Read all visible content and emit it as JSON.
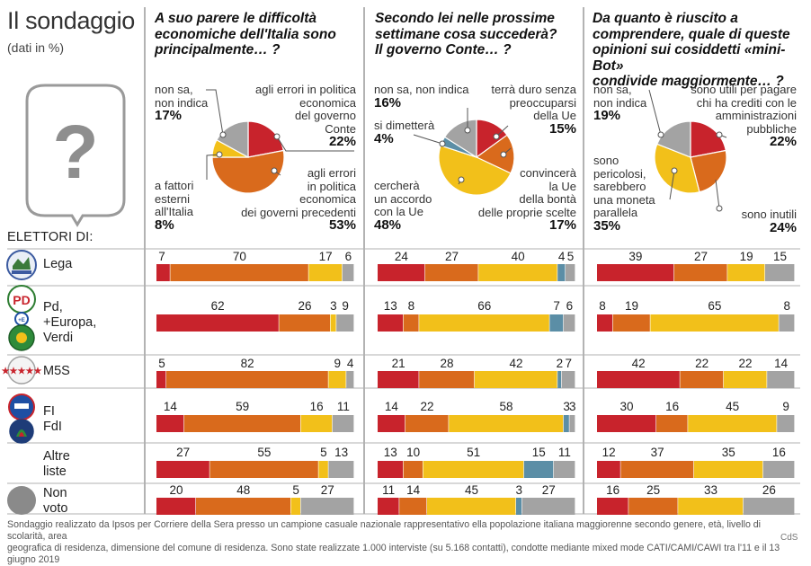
{
  "header": {
    "title": "Il sondaggio",
    "subtitle": "(dati in %)"
  },
  "electors_title": "ELETTORI DI:",
  "parties": [
    {
      "lines": [
        "Lega"
      ]
    },
    {
      "lines": [
        "Pd,",
        "+Europa,",
        "Verdi"
      ]
    },
    {
      "lines": [
        "M5S"
      ]
    },
    {
      "lines": [
        "FI",
        "FdI"
      ]
    },
    {
      "lines": [
        "Altre",
        "liste"
      ]
    },
    {
      "lines": [
        "Non",
        "voto"
      ]
    }
  ],
  "footnote": {
    "line1": "Sondaggio realizzato da Ipsos per Corriere della Sera presso un campione casuale nazionale rappresentativo ella popolazione italiana maggiorenne secondo genere, età, livello di scolarità, area",
    "line2": "geografica di residenza, dimensione del comune di residenza. Sono state realizzate 1.000 interviste (su 5.168 contatti), condotte mediante mixed mode CATI/CAMI/CAWI tra l'11 e il 13 giugno 2019"
  },
  "credit": "CdS",
  "colors": {
    "red": "#c8232c",
    "orange": "#d96a1c",
    "yellow": "#f2c01a",
    "gray": "#a3a3a3",
    "steel": "#5b8ea6",
    "rule": "#9a9a9a",
    "dark": "#333333"
  },
  "questions": {
    "q1": {
      "title": [
        "A suo parere le difficoltà",
        "economiche dell'Italia sono",
        "principalmente… ?"
      ],
      "labels": {
        "non_sa": [
          "non sa,",
          "non indica"
        ],
        "non_sa_val": "17%",
        "gov_conte": [
          "agli errori in politica",
          "economica",
          "del governo",
          "Conte"
        ],
        "gov_conte_val": "22%",
        "esterni": [
          "a fattori",
          "esterni",
          "all'Italia"
        ],
        "esterni_val": "8%",
        "prec": [
          "agli errori",
          "in politica",
          "economica",
          "dei governi precedenti"
        ],
        "prec_val": "53%"
      }
    },
    "q2": {
      "title": [
        "Secondo lei nelle prossime",
        "settimane cosa succederà?",
        "Il governo Conte… ?"
      ],
      "labels": {
        "non_sa": [
          "non sa, non indica"
        ],
        "non_sa_val": "16%",
        "duro": [
          "terrà duro senza",
          "preoccuparsi",
          "della Ue"
        ],
        "duro_val": "15%",
        "dimettera": [
          "si dimetterà"
        ],
        "dimettera_val": "4%",
        "convincera": [
          "convincerà",
          "la Ue",
          "della bontà",
          "delle proprie scelte"
        ],
        "convincera_val": "17%",
        "accordo": [
          "cercherà",
          "un accordo",
          "con la Ue"
        ],
        "accordo_val": "48%"
      }
    },
    "q3": {
      "title": [
        "Da quanto è riuscito a",
        "comprendere, quale di queste",
        "opinioni sui cosiddetti «mini-Bot»",
        "condivide maggiormente… ?"
      ],
      "labels": {
        "non_sa": [
          "non sa,",
          "non indica"
        ],
        "non_sa_val": "19%",
        "utili": [
          "sono utili per pagare",
          "chi ha crediti con le",
          "amministrazioni",
          "pubbliche"
        ],
        "utili_val": "22%",
        "pericolosi": [
          "sono",
          "pericolosi,",
          "sarebbero",
          "una moneta",
          "parallela"
        ],
        "pericolosi_val": "35%",
        "inutili": [
          "sono inutili"
        ],
        "inutili_val": "24%"
      }
    }
  },
  "chart_data": [
    {
      "type": "pie",
      "title": "A suo parere le difficoltà economiche dell'Italia sono principalmente… ?",
      "slices": [
        {
          "label": "agli errori in politica economica del governo Conte",
          "value": 22,
          "color": "#c8232c"
        },
        {
          "label": "agli errori in politica economica dei governi precedenti",
          "value": 53,
          "color": "#d96a1c"
        },
        {
          "label": "a fattori esterni all'Italia",
          "value": 8,
          "color": "#f2c01a"
        },
        {
          "label": "non sa, non indica",
          "value": 17,
          "color": "#a3a3a3"
        }
      ],
      "by_electorate": {
        "type": "bar",
        "stacked": true,
        "categories": [
          "Lega",
          "Pd, +Europa, Verdi",
          "M5S",
          "FI FdI",
          "Altre liste",
          "Non voto"
        ],
        "series": [
          {
            "color": "#c8232c",
            "values": [
              7,
              62,
              5,
              14,
              27,
              20
            ]
          },
          {
            "color": "#d96a1c",
            "values": [
              70,
              26,
              82,
              59,
              55,
              48
            ]
          },
          {
            "color": "#f2c01a",
            "values": [
              17,
              3,
              9,
              16,
              5,
              5
            ]
          },
          {
            "color": "#a3a3a3",
            "values": [
              6,
              9,
              4,
              11,
              13,
              27
            ]
          }
        ]
      }
    },
    {
      "type": "pie",
      "title": "Secondo lei nelle prossime settimane cosa succederà? Il governo Conte… ?",
      "slices": [
        {
          "label": "terrà duro senza preoccuparsi della Ue",
          "value": 15,
          "color": "#c8232c"
        },
        {
          "label": "convincerà la Ue della bontà delle proprie scelte",
          "value": 17,
          "color": "#d96a1c"
        },
        {
          "label": "cercherà un accordo con la Ue",
          "value": 48,
          "color": "#f2c01a"
        },
        {
          "label": "si dimetterà",
          "value": 4,
          "color": "#5b8ea6"
        },
        {
          "label": "non sa, non indica",
          "value": 16,
          "color": "#a3a3a3"
        }
      ],
      "by_electorate": {
        "type": "bar",
        "stacked": true,
        "categories": [
          "Lega",
          "Pd, +Europa, Verdi",
          "M5S",
          "FI FdI",
          "Altre liste",
          "Non voto"
        ],
        "series": [
          {
            "color": "#c8232c",
            "values": [
              24,
              13,
              21,
              14,
              13,
              11
            ]
          },
          {
            "color": "#d96a1c",
            "values": [
              27,
              8,
              28,
              22,
              10,
              14
            ]
          },
          {
            "color": "#f2c01a",
            "values": [
              40,
              66,
              42,
              58,
              51,
              45
            ]
          },
          {
            "color": "#5b8ea6",
            "values": [
              4,
              7,
              2,
              3,
              15,
              3
            ]
          },
          {
            "color": "#a3a3a3",
            "values": [
              5,
              6,
              7,
              3,
              11,
              27
            ]
          }
        ]
      }
    },
    {
      "type": "pie",
      "title": "Da quanto è riuscito a comprendere, quale di queste opinioni sui cosiddetti «mini-Bot» condivide maggiormente… ?",
      "slices": [
        {
          "label": "sono utili per pagare chi ha crediti con le amministrazioni pubbliche",
          "value": 22,
          "color": "#c8232c"
        },
        {
          "label": "sono inutili",
          "value": 24,
          "color": "#d96a1c"
        },
        {
          "label": "sono pericolosi, sarebbero una moneta parallela",
          "value": 35,
          "color": "#f2c01a"
        },
        {
          "label": "non sa, non indica",
          "value": 19,
          "color": "#a3a3a3"
        }
      ],
      "by_electorate": {
        "type": "bar",
        "stacked": true,
        "categories": [
          "Lega",
          "Pd, +Europa, Verdi",
          "M5S",
          "FI FdI",
          "Altre liste",
          "Non voto"
        ],
        "series": [
          {
            "color": "#c8232c",
            "values": [
              39,
              8,
              42,
              30,
              12,
              16
            ]
          },
          {
            "color": "#d96a1c",
            "values": [
              27,
              19,
              22,
              16,
              37,
              25
            ]
          },
          {
            "color": "#f2c01a",
            "values": [
              19,
              65,
              22,
              45,
              35,
              33
            ]
          },
          {
            "color": "#a3a3a3",
            "values": [
              15,
              8,
              14,
              9,
              16,
              26
            ]
          }
        ]
      }
    }
  ]
}
